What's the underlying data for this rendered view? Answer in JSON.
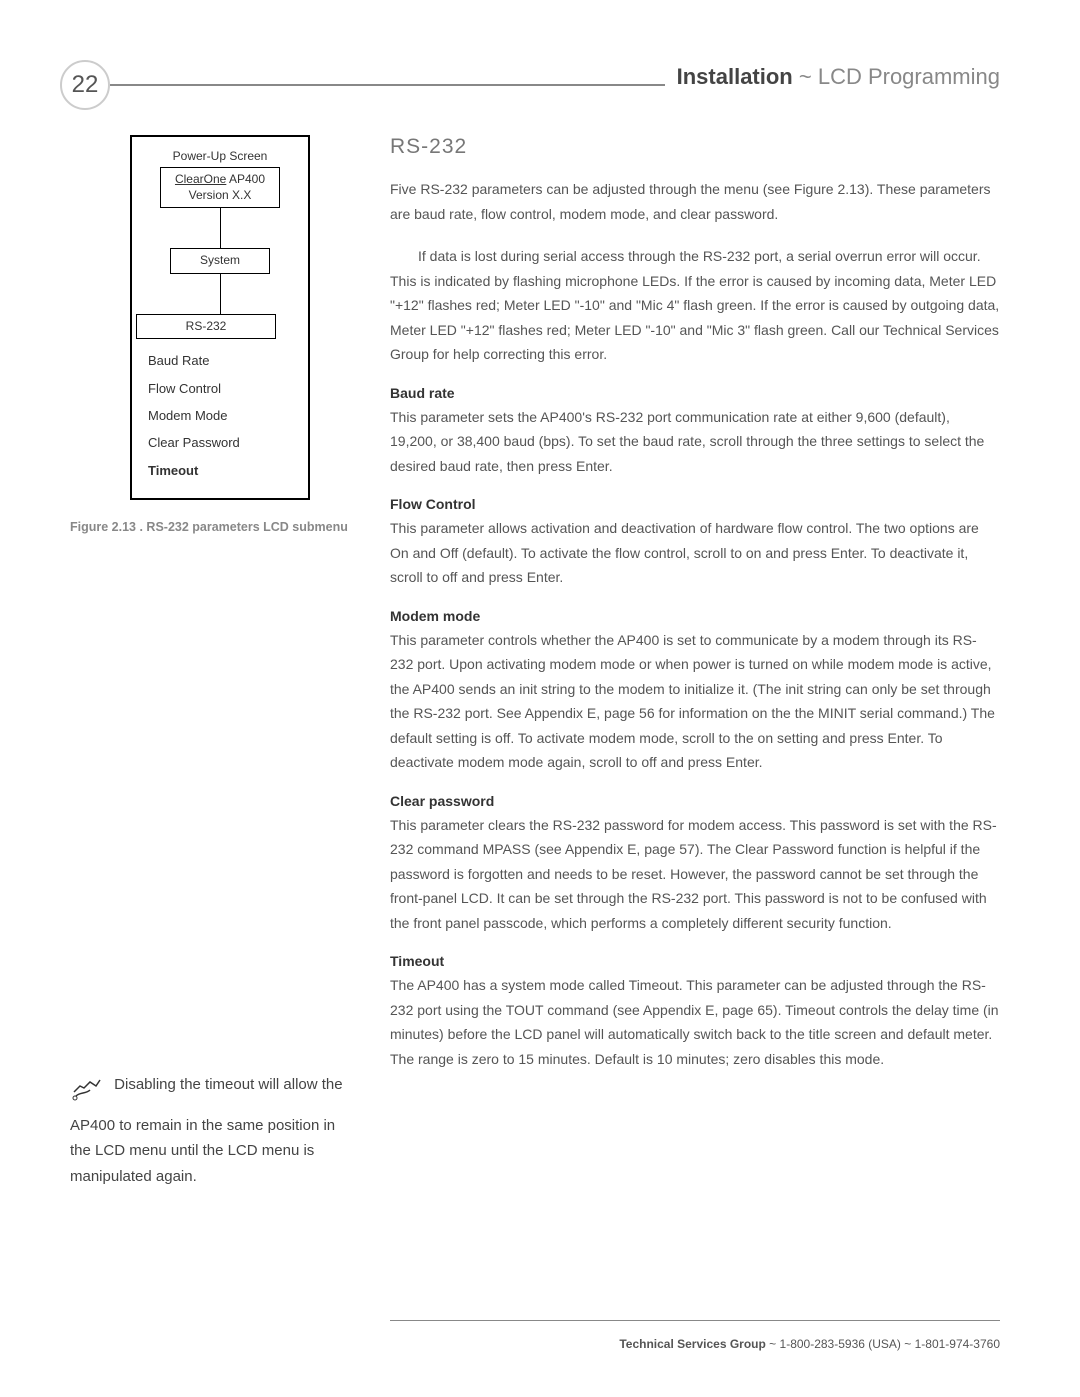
{
  "page_number": "22",
  "header": {
    "bold": "Installation",
    "sep": " ~ ",
    "light": "LCD Programming"
  },
  "diagram": {
    "top_label": "Power-Up Screen",
    "box1_line1": "ClearOne",
    "box1_line1b": "AP400",
    "box1_line2": "Version X.X",
    "box2": "System",
    "box3": "RS-232",
    "items": [
      "Baud Rate",
      "Flow Control",
      "Modem Mode",
      "Clear Password",
      "Timeout"
    ],
    "bold_index": 4
  },
  "figure_caption": "Figure 2.13 . RS-232 parameters LCD submenu",
  "section_title": "RS-232",
  "intro_p1": "Five RS-232 parameters can be adjusted through the menu (see Figure 2.13). These parameters are baud rate, flow control, modem mode, and clear password.",
  "intro_p2": "If data is lost during serial access through the RS-232 port, a serial overrun error will occur. This is indicated by flashing microphone LEDs. If the error is caused by incoming data, Meter LED \"+12\" flashes red; Meter LED \"-10\" and \"Mic 4\" flash green. If the error is caused by outgoing data, Meter LED \"+12\" flashes red; Meter LED \"-10\" and \"Mic 3\" flash green. Call our Technical Services Group for help correcting this error.",
  "sections": [
    {
      "h": "Baud rate",
      "p": "This parameter sets the AP400's RS-232 port communication rate at either 9,600 (default), 19,200, or 38,400 baud (bps). To set the baud rate, scroll through the three settings to select the desired baud rate, then press Enter."
    },
    {
      "h": "Flow Control",
      "p": "This parameter allows activation and deactivation of hardware flow control. The two options are On and Off (default). To activate the flow control, scroll to on and press Enter. To deactivate it, scroll to off and press Enter."
    },
    {
      "h": "Modem mode",
      "p": "This parameter controls whether the AP400 is set to communicate by a modem through its RS-232 port. Upon activating modem mode or when power is turned on while modem mode is active, the AP400 sends an init string to the modem to initialize it. (The init string can only be set through the RS-232 port. See Appendix E, page 56 for information on the the MINIT serial command.) The default setting is off. To activate modem mode, scroll to the on setting and press Enter. To deactivate modem mode again, scroll to off and press Enter."
    },
    {
      "h": "Clear password",
      "p": "This parameter clears the RS-232 password for modem access. This password is set with the RS-232 command MPASS (see Appendix E, page 57). The Clear Password function is helpful if the password is forgotten and needs to be reset. However, the password cannot be set through the front-panel LCD. It can be set through the RS-232 port. This password is not to be confused with the front panel passcode, which performs a completely different security function."
    },
    {
      "h": "Timeout",
      "p": "The AP400 has a system mode called Timeout. This parameter can be adjusted through the RS-232 port using the TOUT command (see Appendix E, page 65). Timeout controls the delay time (in minutes) before the LCD panel will automatically switch back to the title screen and default meter. The range is zero to 15 minutes. Default is 10 minutes; zero disables this mode."
    }
  ],
  "note": "Disabling the timeout will allow the AP400 to remain in the same position in the LCD menu until the LCD menu is manipulated again.",
  "footer": {
    "bold": "Technical Services Group",
    "rest": " ~ 1-800-283-5936 (USA) ~ 1-801-974-3760"
  }
}
